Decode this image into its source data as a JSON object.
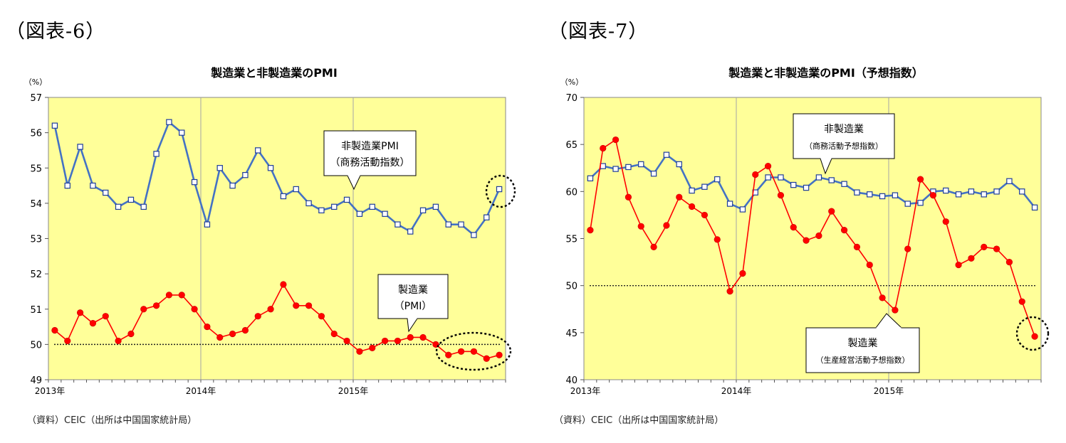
{
  "figures": [
    {
      "label": "（図表-6）",
      "source": "（資料）CEIC（出所は中国国家統計局）"
    },
    {
      "label": "（図表-7）",
      "source": "（資料）CEIC（出所は中国国家統計局）"
    }
  ],
  "chart_data": [
    {
      "type": "line",
      "title": "製造業と非製造業のPMI",
      "unit": "（%）",
      "ylim": [
        49,
        57
      ],
      "yticks": [
        49,
        50,
        51,
        52,
        53,
        54,
        55,
        56,
        57
      ],
      "x_tick_labels": [
        "2013年",
        "2014年",
        "2015年"
      ],
      "x": [
        "2013-01",
        "2013-02",
        "2013-03",
        "2013-04",
        "2013-05",
        "2013-06",
        "2013-07",
        "2013-08",
        "2013-09",
        "2013-10",
        "2013-11",
        "2013-12",
        "2014-01",
        "2014-02",
        "2014-03",
        "2014-04",
        "2014-05",
        "2014-06",
        "2014-07",
        "2014-08",
        "2014-09",
        "2014-10",
        "2014-11",
        "2014-12",
        "2015-01",
        "2015-02",
        "2015-03",
        "2015-04",
        "2015-05",
        "2015-06",
        "2015-07",
        "2015-08",
        "2015-09",
        "2015-10",
        "2015-11",
        "2015-12"
      ],
      "reference_line": 50,
      "series": [
        {
          "callout": "非製造業PMI（商務活動指数）",
          "color": "#4472c4",
          "marker": "square",
          "values": [
            56.2,
            54.5,
            55.6,
            54.5,
            54.3,
            53.9,
            54.1,
            53.9,
            55.4,
            56.3,
            56.0,
            54.6,
            53.4,
            55.0,
            54.5,
            54.8,
            55.5,
            55.0,
            54.2,
            54.4,
            54.0,
            53.8,
            53.9,
            54.1,
            53.7,
            53.9,
            53.7,
            53.4,
            53.2,
            53.8,
            53.9,
            53.4,
            53.4,
            53.1,
            53.6,
            54.4
          ]
        },
        {
          "callout": "製造業（PMI）",
          "color": "#ff0000",
          "marker": "circle",
          "values": [
            50.4,
            50.1,
            50.9,
            50.6,
            50.8,
            50.1,
            50.3,
            51.0,
            51.1,
            51.4,
            51.4,
            51.0,
            50.5,
            50.2,
            50.3,
            50.4,
            50.8,
            51.0,
            51.7,
            51.1,
            51.1,
            50.8,
            50.3,
            50.1,
            49.8,
            49.9,
            50.1,
            50.1,
            50.2,
            50.2,
            50.0,
            49.7,
            49.8,
            49.8,
            49.6,
            49.7
          ]
        }
      ]
    },
    {
      "type": "line",
      "title": "製造業と非製造業のPMI（予想指数）",
      "unit": "（%）",
      "ylim": [
        40,
        70
      ],
      "yticks": [
        40,
        45,
        50,
        55,
        60,
        65,
        70
      ],
      "x_tick_labels": [
        "2013年",
        "2014年",
        "2015年"
      ],
      "x": [
        "2013-01",
        "2013-02",
        "2013-03",
        "2013-04",
        "2013-05",
        "2013-06",
        "2013-07",
        "2013-08",
        "2013-09",
        "2013-10",
        "2013-11",
        "2013-12",
        "2014-01",
        "2014-02",
        "2014-03",
        "2014-04",
        "2014-05",
        "2014-06",
        "2014-07",
        "2014-08",
        "2014-09",
        "2014-10",
        "2014-11",
        "2014-12",
        "2015-01",
        "2015-02",
        "2015-03",
        "2015-04",
        "2015-05",
        "2015-06",
        "2015-07",
        "2015-08",
        "2015-09",
        "2015-10",
        "2015-11",
        "2015-12"
      ],
      "reference_line": 50,
      "series": [
        {
          "callout": "非製造業（商務活動予想指数）",
          "color": "#4472c4",
          "marker": "square",
          "values": [
            61.4,
            62.7,
            62.4,
            62.6,
            62.9,
            61.9,
            63.9,
            62.9,
            60.1,
            60.5,
            61.3,
            58.7,
            58.1,
            59.9,
            61.5,
            61.5,
            60.7,
            60.4,
            61.5,
            61.2,
            60.8,
            59.9,
            59.7,
            59.5,
            59.6,
            58.7,
            58.8,
            60.0,
            60.1,
            59.7,
            60.0,
            59.7,
            60.0,
            61.1,
            60.0,
            58.3
          ]
        },
        {
          "callout": "製造業（生産経営活動予想指数）",
          "color": "#ff0000",
          "marker": "circle",
          "values": [
            55.9,
            64.6,
            65.5,
            59.4,
            56.3,
            54.1,
            56.4,
            59.4,
            58.4,
            57.5,
            54.9,
            49.4,
            51.3,
            61.8,
            62.7,
            59.6,
            56.2,
            54.8,
            55.3,
            57.9,
            55.9,
            54.1,
            52.2,
            48.7,
            47.4,
            53.9,
            61.3,
            59.6,
            56.8,
            52.2,
            52.9,
            54.1,
            53.9,
            52.5,
            48.3,
            44.6
          ]
        }
      ]
    }
  ]
}
